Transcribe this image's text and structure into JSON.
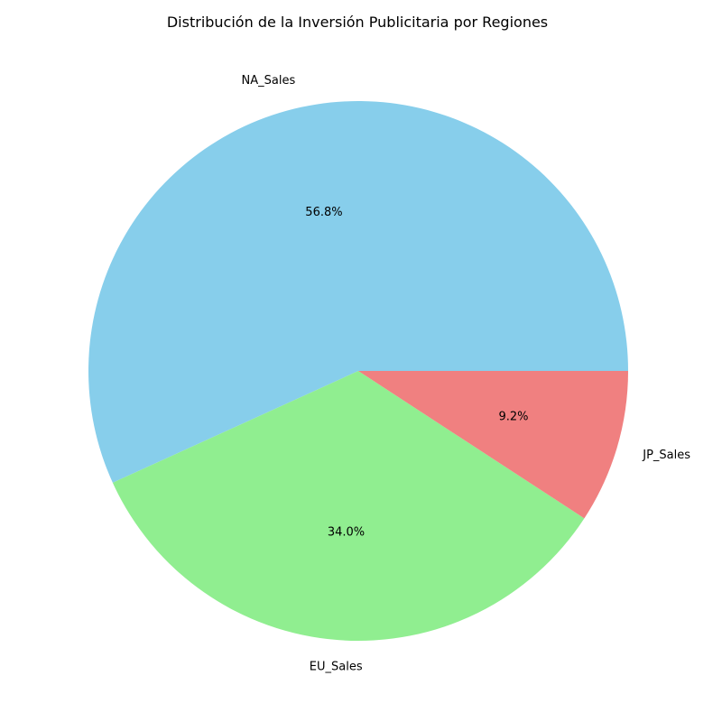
{
  "chart_data": {
    "type": "pie",
    "title": "Distribución de la Inversión Publicitaria por Regiones",
    "slices": [
      {
        "label": "NA_Sales",
        "value": 56.8,
        "pct_label": "56.8%",
        "color": "#87ceeb"
      },
      {
        "label": "EU_Sales",
        "value": 34.0,
        "pct_label": "34.0%",
        "color": "#90ee90"
      },
      {
        "label": "JP_Sales",
        "value": 9.2,
        "pct_label": "9.2%",
        "color": "#f08080"
      }
    ],
    "start_angle": 0,
    "direction": "counterclockwise"
  }
}
